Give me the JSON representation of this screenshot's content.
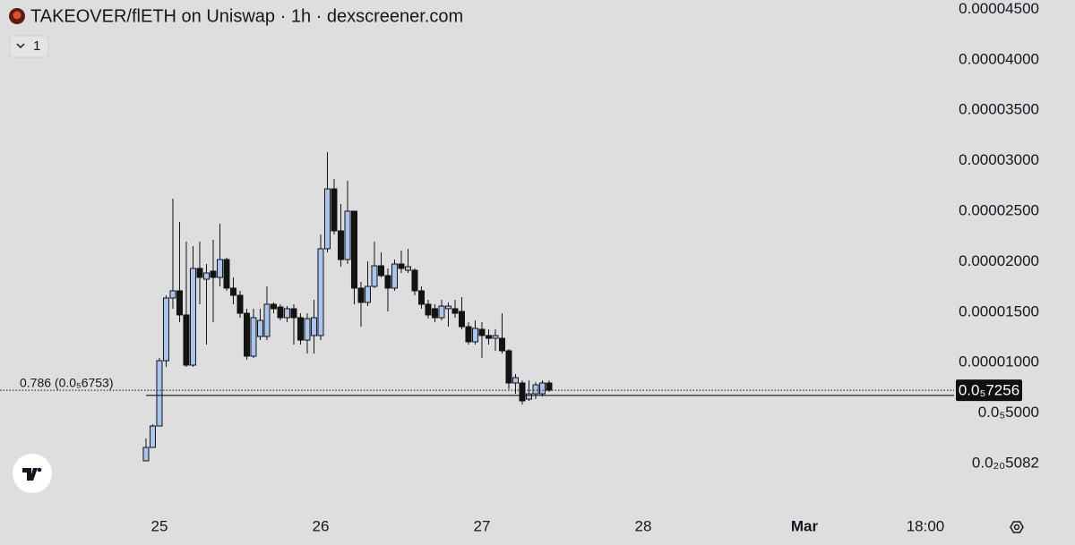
{
  "chart_data": {
    "type": "candlestick",
    "title": "TAKEOVER/flETH on Uniswap · 1h · dexscreener.com",
    "indicator_toggle": "1",
    "x": [
      0,
      1,
      2,
      3,
      4,
      5,
      6,
      7,
      8,
      9,
      10,
      11,
      12,
      13,
      14,
      15,
      16,
      17,
      18,
      19,
      20,
      21,
      22,
      23,
      24,
      25,
      26,
      27,
      28,
      29,
      30,
      31,
      32,
      33,
      34,
      35,
      36,
      37,
      38,
      39,
      40,
      41,
      42,
      43,
      44,
      45,
      46,
      47,
      48,
      49,
      50,
      51,
      52,
      53,
      54,
      55,
      56,
      57,
      58,
      59,
      60
    ],
    "open": [
      2.7e-07,
      1.6e-06,
      3.72e-06,
      1.019e-05,
      1.64e-05,
      1.711e-05,
      1.472e-05,
      9.75e-06,
      1.933e-05,
      1.826e-05,
      1.906e-05,
      1.844e-05,
      2.021e-05,
      1.738e-05,
      1.667e-05,
      1.489e-05,
      1.064e-05,
      1.259e-05,
      1.259e-05,
      1.578e-05,
      1.551e-05,
      1.445e-05,
      1.534e-05,
      1.445e-05,
      1.223e-05,
      1.268e-05,
      1.268e-05,
      2.128e-05,
      2.721e-05,
      2.305e-05,
      2.021e-05,
      2.5e-05,
      1.738e-05,
      1.596e-05,
      1.755e-05,
      1.959e-05,
      1.862e-05,
      1.738e-05,
      1.977e-05,
      1.915e-05,
      1.915e-05,
      1.711e-05,
      1.578e-05,
      1.534e-05,
      1.445e-05,
      1.534e-05,
      1.534e-05,
      1.507e-05,
      1.356e-05,
      1.206e-05,
      1.33e-05,
      1.268e-05,
      1.241e-05,
      1.241e-05,
      1.117e-05,
      7.98e-06,
      7.98e-06,
      6.38e-06,
      6.91e-06,
      6.91e-06,
      7.98e-06
    ],
    "high": [
      2.48e-06,
      3.9e-06,
      1.046e-05,
      1.667e-05,
      2.624e-05,
      2.394e-05,
      2.199e-05,
      2.154e-05,
      2.199e-05,
      1.977e-05,
      2.216e-05,
      2.376e-05,
      2.039e-05,
      1.844e-05,
      1.711e-05,
      1.534e-05,
      1.534e-05,
      1.534e-05,
      1.755e-05,
      1.596e-05,
      1.578e-05,
      1.56e-05,
      1.578e-05,
      1.489e-05,
      1.489e-05,
      1.622e-05,
      2.269e-05,
      3.085e-05,
      2.819e-05,
      2.571e-05,
      2.801e-05,
      2.5e-05,
      1.8e-05,
      2.003e-05,
      2.199e-05,
      2.092e-05,
      1.933e-05,
      2.021e-05,
      2.11e-05,
      2.128e-05,
      1.933e-05,
      1.755e-05,
      1.622e-05,
      1.578e-05,
      1.622e-05,
      1.596e-05,
      1.622e-05,
      1.649e-05,
      1.401e-05,
      1.418e-05,
      1.401e-05,
      1.33e-05,
      1.33e-05,
      1.489e-05,
      1.135e-05,
      8.87e-06,
      8.24e-06,
      8.24e-06,
      8.07e-06,
      8.24e-06,
      8.24e-06
    ],
    "low": [
      2.7e-07,
      1.6e-06,
      3.72e-06,
      9.57e-06,
      1.534e-05,
      1.401e-05,
      9.57e-06,
      9.57e-06,
      1.578e-05,
      1.179e-05,
      1.401e-05,
      1.755e-05,
      1.711e-05,
      1.578e-05,
      1.445e-05,
      1.028e-05,
      1.046e-05,
      1.223e-05,
      1.223e-05,
      1.489e-05,
      1.418e-05,
      1.401e-05,
      1.179e-05,
      1.179e-05,
      1.09e-05,
      1.09e-05,
      1.223e-05,
      2.092e-05,
      2.269e-05,
      1.95e-05,
      1.977e-05,
      1.578e-05,
      1.356e-05,
      1.56e-05,
      1.738e-05,
      1.844e-05,
      1.507e-05,
      1.711e-05,
      1.888e-05,
      1.888e-05,
      1.667e-05,
      1.534e-05,
      1.436e-05,
      1.401e-05,
      1.418e-05,
      1.356e-05,
      1.445e-05,
      1.33e-05,
      1.179e-05,
      1.179e-05,
      1.046e-05,
      1.179e-05,
      1.117e-05,
      1.09e-05,
      7.36e-06,
      6.91e-06,
      5.85e-06,
      6.21e-06,
      6.38e-06,
      6.65e-06,
      7.09e-06
    ],
    "close": [
      1.6e-06,
      3.72e-06,
      1.019e-05,
      1.64e-05,
      1.711e-05,
      1.472e-05,
      9.75e-06,
      1.933e-05,
      1.844e-05,
      1.888e-05,
      1.844e-05,
      2.021e-05,
      1.738e-05,
      1.667e-05,
      1.489e-05,
      1.064e-05,
      1.445e-05,
      1.418e-05,
      1.578e-05,
      1.534e-05,
      1.445e-05,
      1.534e-05,
      1.445e-05,
      1.223e-05,
      1.436e-05,
      1.445e-05,
      2.128e-05,
      2.721e-05,
      2.305e-05,
      2.021e-05,
      2.5e-05,
      1.738e-05,
      1.596e-05,
      1.755e-05,
      1.959e-05,
      1.862e-05,
      1.738e-05,
      1.977e-05,
      1.933e-05,
      1.95e-05,
      1.711e-05,
      1.578e-05,
      1.472e-05,
      1.445e-05,
      1.56e-05,
      1.56e-05,
      1.489e-05,
      1.356e-05,
      1.206e-05,
      1.339e-05,
      1.268e-05,
      1.241e-05,
      1.268e-05,
      1.117e-05,
      7.98e-06,
      8.51e-06,
      6.21e-06,
      6.91e-06,
      7.8e-06,
      7.98e-06,
      7.27e-06
    ],
    "up_color": "#a9c5ee",
    "down_color": "#131313",
    "xlim": [
      -21.73,
      120.27
    ],
    "xticks": [
      {
        "value": 2,
        "label": "25"
      },
      {
        "value": 26,
        "label": "26"
      },
      {
        "value": 50,
        "label": "27"
      },
      {
        "value": 74,
        "label": "28"
      },
      {
        "value": 98,
        "label": "Mar"
      },
      {
        "value": 116,
        "label": "18:00"
      }
    ],
    "ylim": [
      -4.61e-06,
      4.592e-05
    ],
    "yticks": [
      {
        "value": 4.5e-05,
        "label": "0.00004500"
      },
      {
        "value": 4e-05,
        "label": "0.00004000"
      },
      {
        "value": 3.5e-05,
        "label": "0.00003500"
      },
      {
        "value": 3e-05,
        "label": "0.00003000"
      },
      {
        "value": 2.5e-05,
        "label": "0.00002500"
      },
      {
        "value": 2e-05,
        "label": "0.00002000"
      },
      {
        "value": 1.5e-05,
        "label": "0.00001500"
      },
      {
        "value": 1e-05,
        "label": "0.00001000"
      },
      {
        "value": 5e-06,
        "label": "0.0₅5000"
      },
      {
        "value": 5.082e-21,
        "label": "0.0₂₀5082"
      }
    ],
    "fib_level": {
      "value": 6.753e-06,
      "label": "0.786 (0.0₅6753)"
    },
    "last_price": {
      "value": 7.256e-06,
      "label": "0.0₅7256"
    }
  }
}
